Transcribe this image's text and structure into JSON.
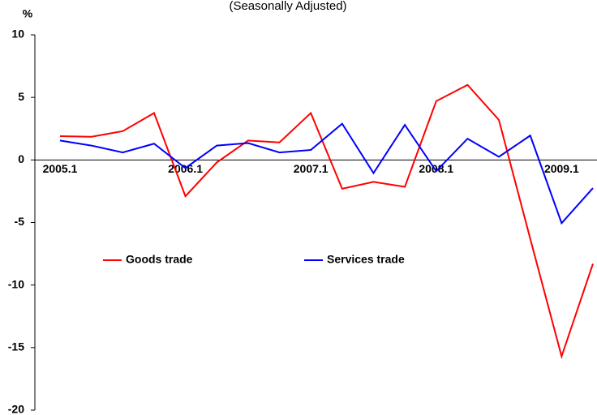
{
  "chart_data": {
    "type": "line",
    "subtitle": "(Seasonally Adjusted)",
    "y_label": "%",
    "categories": [
      "2005.1",
      null,
      null,
      null,
      "2006.1",
      null,
      null,
      null,
      "2007.1",
      null,
      null,
      null,
      "2008.1",
      null,
      null,
      null,
      "2009.1",
      null
    ],
    "series": [
      {
        "name": "Goods trade",
        "color": "#ff0000",
        "values": [
          1.9,
          1.85,
          2.3,
          3.75,
          -2.9,
          -0.2,
          1.55,
          1.4,
          3.75,
          -2.3,
          -1.75,
          -2.15,
          4.7,
          6.0,
          3.2,
          -6.3,
          -15.7,
          -8.3
        ]
      },
      {
        "name": "Services trade",
        "color": "#0000ff",
        "values": [
          1.55,
          1.15,
          0.6,
          1.3,
          -0.65,
          1.15,
          1.35,
          0.6,
          0.8,
          2.9,
          -1.05,
          2.8,
          -0.9,
          1.7,
          0.25,
          1.95,
          -5.05,
          -2.25
        ]
      }
    ],
    "ylim": [
      -20,
      10
    ],
    "yticks": [
      -20,
      -15,
      -10,
      -5,
      0,
      5,
      10
    ]
  }
}
